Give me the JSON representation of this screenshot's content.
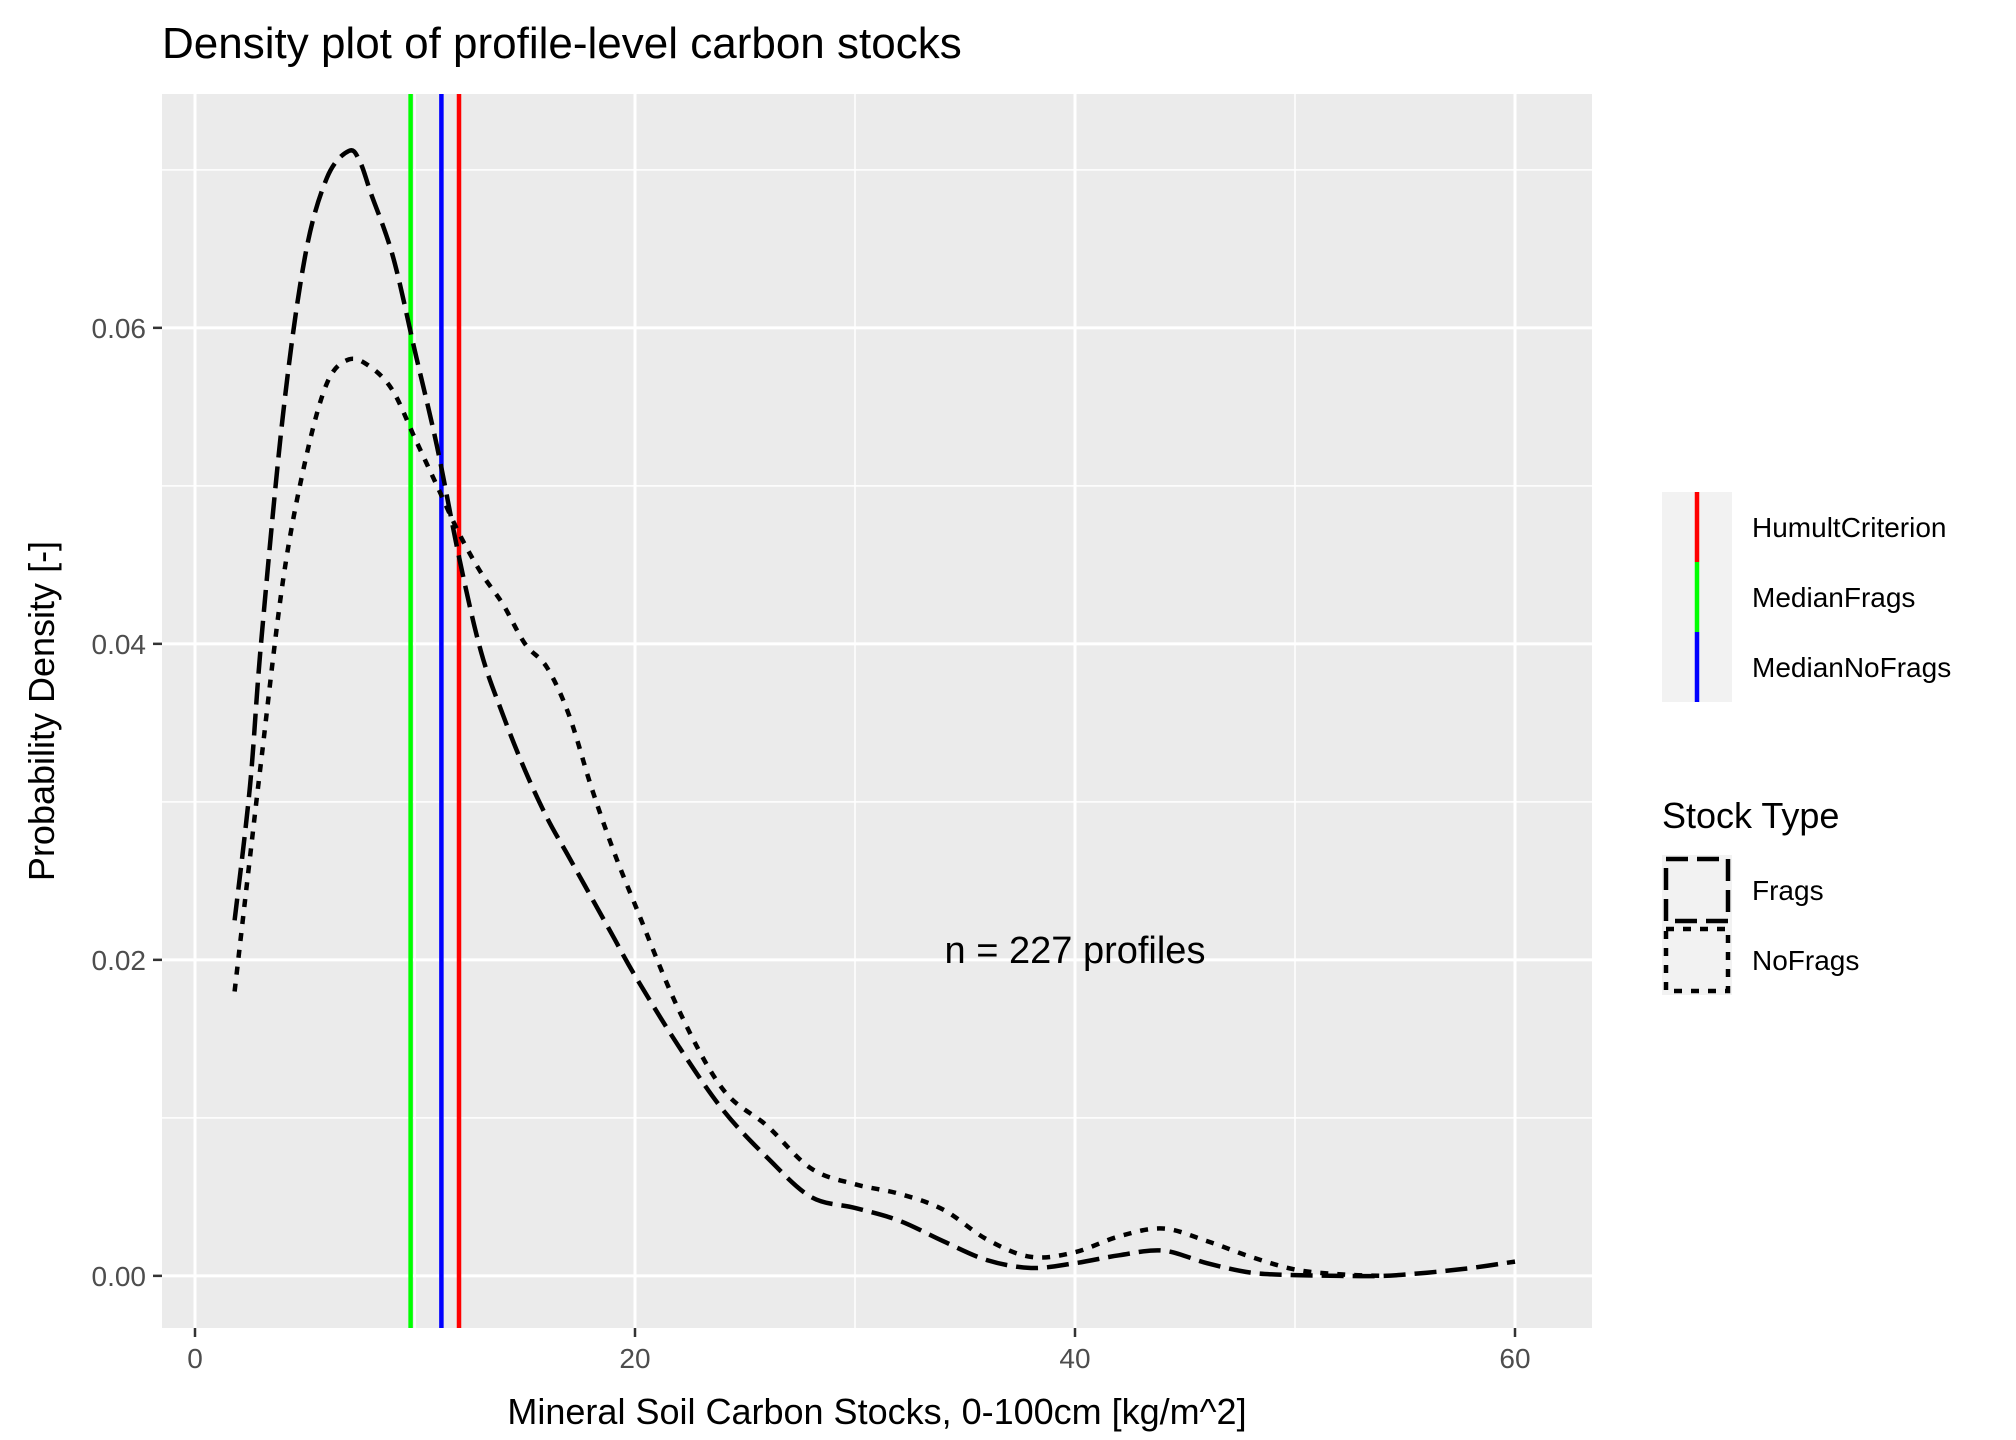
{
  "chart_data": {
    "type": "line",
    "title": "Density plot of profile-level carbon stocks",
    "xlabel": "Mineral Soil Carbon Stocks, 0-100cm [kg/m^2]",
    "ylabel": "Probability Density [-]",
    "xlim": [
      -1.5,
      63.5
    ],
    "ylim": [
      -0.0033,
      0.0748
    ],
    "x_ticks": [
      0,
      20,
      40,
      60
    ],
    "y_ticks": [
      0.0,
      0.02,
      0.04,
      0.06
    ],
    "x_tick_labels": [
      "0",
      "20",
      "40",
      "60"
    ],
    "y_tick_labels": [
      "0.00",
      "0.02",
      "0.04",
      "0.06"
    ],
    "grid": true,
    "annotation": "n = 227 profiles",
    "annotation_x": 40,
    "annotation_y": 0.0198,
    "series": [
      {
        "name": "Frags",
        "dash": "longdash",
        "color": "#000000",
        "x": [
          1.8,
          2.5,
          3,
          4,
          5,
          6,
          7,
          7.5,
          8,
          9,
          10,
          11,
          12,
          13,
          14,
          15,
          16,
          17,
          18,
          19,
          20,
          22,
          24,
          26,
          28,
          30,
          32,
          34,
          36,
          38,
          40,
          42,
          44,
          46,
          48,
          50,
          52,
          54,
          56,
          58,
          60
        ],
        "y": [
          0.0225,
          0.031,
          0.04,
          0.0545,
          0.0645,
          0.0695,
          0.0712,
          0.0705,
          0.0685,
          0.0645,
          0.0585,
          0.0525,
          0.0455,
          0.0395,
          0.0355,
          0.032,
          0.029,
          0.0265,
          0.024,
          0.0215,
          0.019,
          0.0145,
          0.0105,
          0.0075,
          0.005,
          0.0043,
          0.0035,
          0.0022,
          0.001,
          0.0005,
          0.0008,
          0.0013,
          0.0016,
          0.0008,
          0.0002,
          5e-05,
          0.0,
          0.0,
          0.0002,
          0.0005,
          0.0009
        ]
      },
      {
        "name": "NoFrags",
        "dash": "dotted",
        "color": "#000000",
        "x": [
          1.8,
          2.5,
          3,
          4,
          5,
          6,
          7,
          8,
          9,
          10,
          11,
          12,
          13,
          14,
          15,
          16,
          17,
          18,
          19,
          20,
          22,
          24,
          26,
          28,
          30,
          32,
          34,
          36,
          38,
          40,
          42,
          44,
          46,
          48,
          50,
          52,
          54
        ],
        "y": [
          0.018,
          0.0265,
          0.0325,
          0.044,
          0.0515,
          0.0565,
          0.058,
          0.0575,
          0.056,
          0.053,
          0.05,
          0.047,
          0.0445,
          0.0425,
          0.04,
          0.0385,
          0.0355,
          0.031,
          0.027,
          0.0235,
          0.0168,
          0.0118,
          0.0095,
          0.0068,
          0.0058,
          0.0052,
          0.0042,
          0.0023,
          0.0012,
          0.0015,
          0.0025,
          0.003,
          0.0022,
          0.0012,
          0.0004,
          0.0001,
          0.0
        ]
      }
    ],
    "vlines": [
      {
        "name": "HumultCriterion",
        "x": 12,
        "color": "#ff0000"
      },
      {
        "name": "MedianFrags",
        "x": 9.8,
        "color": "#00ff00"
      },
      {
        "name": "MedianNoFrags",
        "x": 11.2,
        "color": "#0000ff"
      }
    ],
    "legend_lines": [
      "HumultCriterion",
      "MedianFrags",
      "MedianNoFrags"
    ],
    "legend_stock_title": "Stock Type",
    "legend_stock": [
      "Frags",
      "NoFrags"
    ],
    "legend_placement": "right"
  }
}
